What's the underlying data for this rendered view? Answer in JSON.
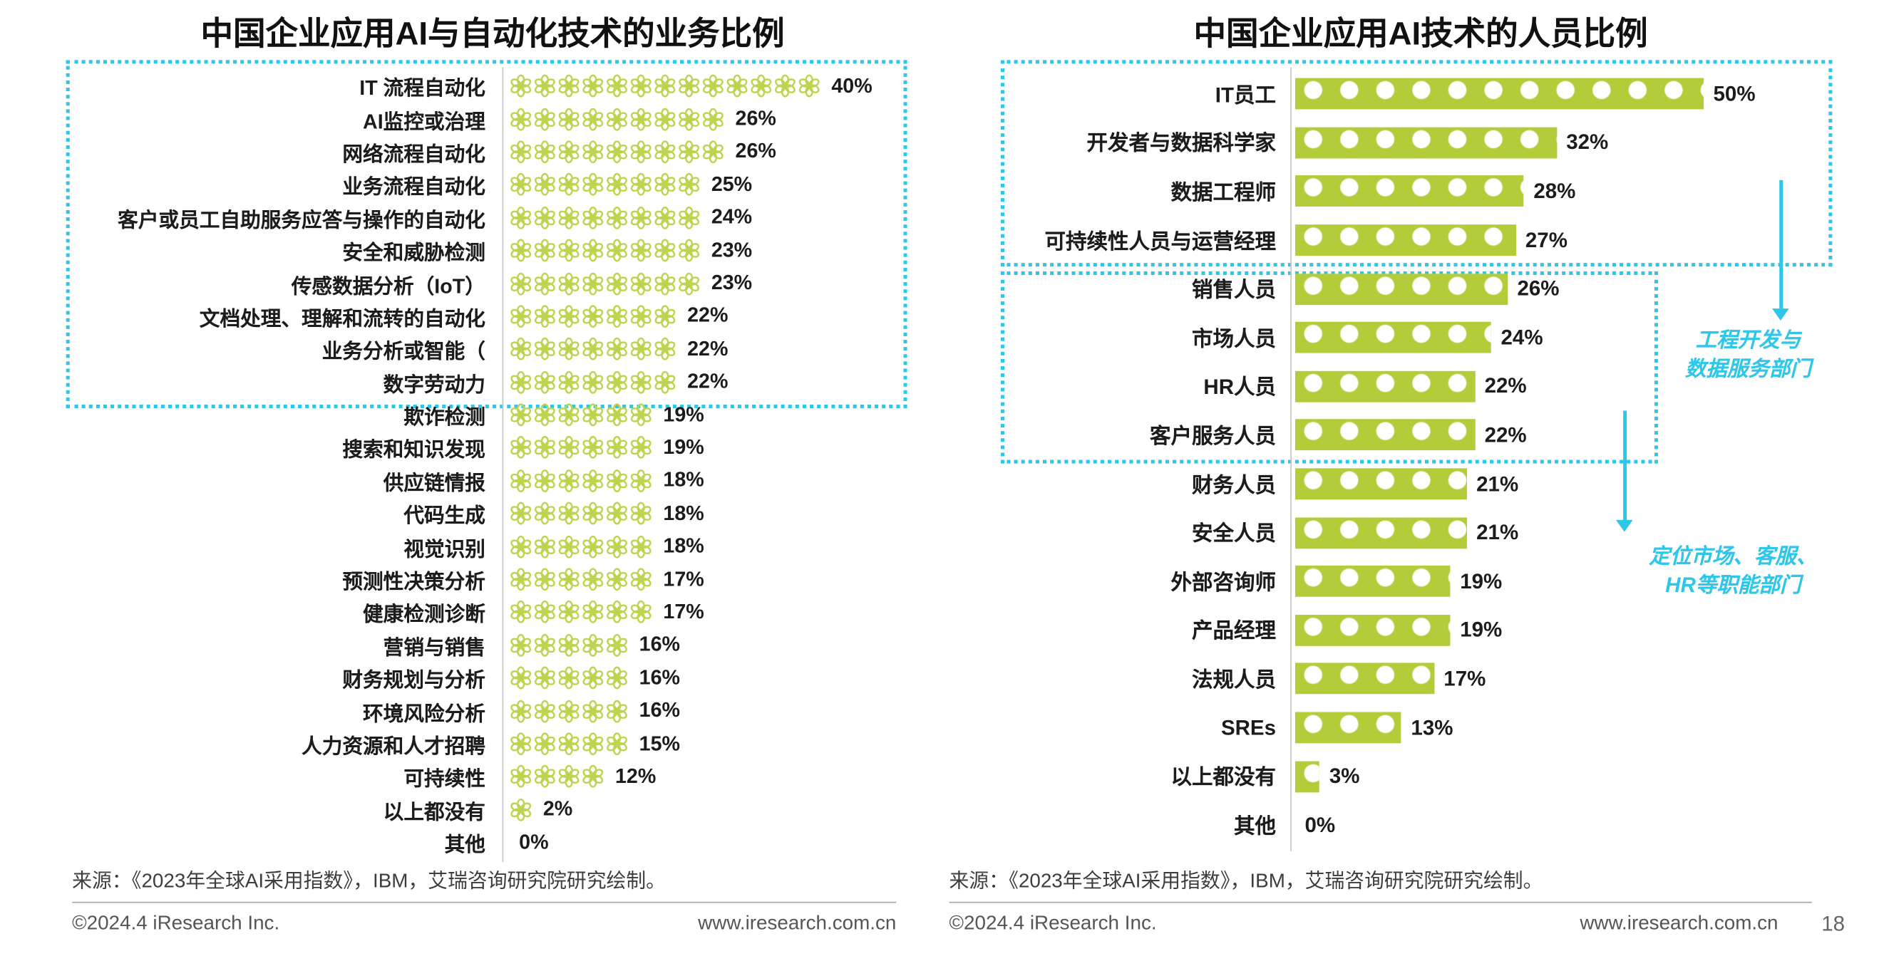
{
  "chart_data": [
    {
      "type": "bar",
      "variant": "pictogram-flower-row",
      "title": "中国企业应用AI与自动化技术的业务比例",
      "unit": "%",
      "orientation": "horizontal",
      "categories": [
        "IT 流程自动化",
        "AI监控或治理",
        "网络流程自动化",
        "业务流程自动化",
        "客户或员工自助服务应答与操作的自动化",
        "安全和威胁检测",
        "传感数据分析（IoT）",
        "文档处理、理解和流转的自动化",
        "业务分析或智能（",
        "数字劳动力",
        "欺诈检测",
        "搜索和知识发现",
        "供应链情报",
        "代码生成",
        "视觉识别",
        "预测性决策分析",
        "健康检测诊断",
        "营销与销售",
        "财务规划与分析",
        "环境风险分析",
        "人力资源和人才招聘",
        "可持续性",
        "以上都没有",
        "其他"
      ],
      "values": [
        40,
        26,
        26,
        25,
        24,
        23,
        23,
        22,
        22,
        22,
        19,
        19,
        18,
        18,
        18,
        17,
        17,
        16,
        16,
        16,
        15,
        12,
        2,
        0
      ],
      "highlight_box_rows": [
        1,
        10
      ],
      "source": "来源：《2023年全球AI采用指数》，IBM，艾瑞咨询研究院研究绘制。"
    },
    {
      "type": "bar",
      "variant": "dotted-green-bar",
      "title": "中国企业应用AI技术的人员比例",
      "unit": "%",
      "orientation": "horizontal",
      "categories": [
        "IT员工",
        "开发者与数据科学家",
        "数据工程师",
        "可持续性人员与运营经理",
        "销售人员",
        "市场人员",
        "HR人员",
        "客户服务人员",
        "财务人员",
        "安全人员",
        "外部咨询师",
        "产品经理",
        "法规人员",
        "SREs",
        "以上都没有",
        "其他"
      ],
      "values": [
        50,
        32,
        28,
        27,
        26,
        24,
        22,
        22,
        21,
        21,
        19,
        19,
        17,
        13,
        3,
        0
      ],
      "highlight_boxes": [
        {
          "rows": [
            1,
            4
          ],
          "annotation": "工程开发与数据服务部门"
        },
        {
          "rows": [
            5,
            8
          ],
          "annotation": "定位市场、客服、HR等职能部门"
        }
      ],
      "source": "来源：《2023年全球AI采用指数》，IBM，艾瑞咨询研究院研究绘制。"
    }
  ],
  "annotations": {
    "box1_line1": "工程开发与",
    "box1_line2": "数据服务部门",
    "box2_line1": "定位市场、客服、",
    "box2_line2": "HR等职能部门"
  },
  "footer": {
    "left_copyright": "©2024.4 iResearch Inc.",
    "left_site": "www.iresearch.com.cn",
    "right_copyright": "©2024.4 iResearch Inc.",
    "right_site": "www.iresearch.com.cn",
    "page_number": "18"
  },
  "colors": {
    "pictogram_green": "#bdd44e",
    "bar_green": "#b3cc3a",
    "highlight_cyan": "#2ec6e9"
  }
}
